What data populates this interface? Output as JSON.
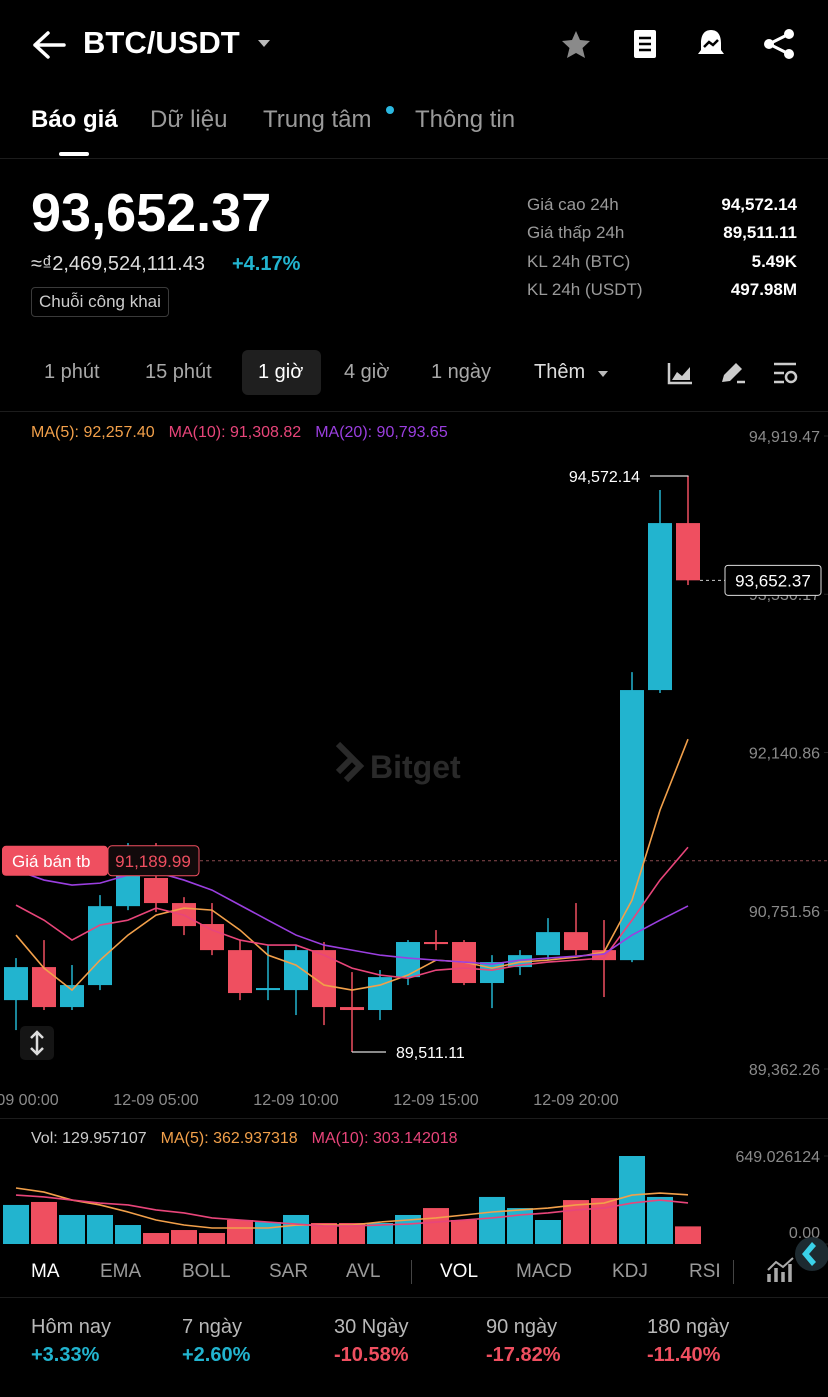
{
  "header": {
    "title": "BTC/USDT"
  },
  "tabs": {
    "items": [
      "Báo giá",
      "Dữ liệu",
      "Trung tâm",
      "Thông tin"
    ],
    "active": 0
  },
  "price": {
    "last": "93,652.37",
    "fiat": "≈₫2,469,524,111.43",
    "change": "+4.17%",
    "tag": "Chuỗi công khai"
  },
  "stats": [
    {
      "label": "Giá cao 24h",
      "value": "94,572.14"
    },
    {
      "label": "Giá thấp 24h",
      "value": "89,511.11"
    },
    {
      "label": "KL 24h (BTC)",
      "value": "5.49K"
    },
    {
      "label": "KL 24h (USDT)",
      "value": "497.98M"
    }
  ],
  "intervals": {
    "items": [
      "1 phút",
      "15 phút",
      "1 giờ",
      "4 giờ",
      "1 ngày",
      "Thêm"
    ],
    "active": 2
  },
  "chart_data": [
    {
      "type": "candlestick",
      "watermark": "Bitget",
      "categories": [
        "12-09 00:00",
        null,
        null,
        null,
        null,
        "12-09 05:00",
        null,
        null,
        null,
        null,
        "12-09 10:00",
        null,
        null,
        null,
        null,
        "12-09 15:00",
        null,
        null,
        null,
        null,
        "12-09 20:00",
        null,
        null,
        null,
        null
      ],
      "open": [
        89967,
        90257,
        89906,
        90099,
        90792,
        91039,
        90819,
        90635,
        90406,
        90055,
        90055,
        90406,
        89906,
        89880,
        90169,
        90477,
        90477,
        90117,
        90257,
        90362,
        90564,
        90406,
        90318,
        92689,
        94155
      ],
      "high": [
        90336,
        90494,
        90275,
        90889,
        91346,
        91346,
        90871,
        90819,
        90494,
        90450,
        90450,
        90477,
        90213,
        90231,
        90494,
        90582,
        90494,
        90362,
        90406,
        90687,
        90819,
        90670,
        92847,
        94445,
        94572.14
      ],
      "low": [
        89704,
        89880,
        89880,
        90055,
        90757,
        90740,
        90538,
        90362,
        89967,
        89967,
        89836,
        89748,
        89511.11,
        89792,
        90099,
        90406,
        90099,
        89897,
        90187,
        90318,
        90362,
        89994,
        90301,
        92663,
        93611
      ],
      "close": [
        90257,
        89906,
        90099,
        90792,
        91126,
        90819,
        90617,
        90406,
        90029,
        90073,
        90406,
        89906,
        89880,
        90169,
        90477,
        90459,
        90117,
        90301,
        90362,
        90564,
        90406,
        90318,
        92689,
        94155,
        93652.37
      ],
      "up_color": "#22b4cf",
      "down_color": "#ef4f60",
      "series": [
        {
          "name": "MA(5):",
          "color": "#f2a04a",
          "values": [
            90538,
            90248,
            90055,
            90318,
            90538,
            90713,
            90775,
            90757,
            90582,
            90362,
            90274,
            90099,
            90055,
            90099,
            90187,
            90318,
            90301,
            90248,
            90301,
            90318,
            90345,
            90389,
            90845,
            91635,
            92257.4
          ],
          "value_labels": [
            null,
            null,
            null,
            null,
            null,
            null,
            null,
            null,
            null,
            null,
            null,
            null,
            null,
            null,
            null,
            null,
            null,
            null,
            null,
            null,
            null,
            null,
            null,
            null,
            "92,257.40"
          ]
        },
        {
          "name": "MA(10):",
          "color": "#e8457a",
          "values": [
            90801,
            90669,
            90494,
            90626,
            90669,
            90775,
            90713,
            90582,
            90494,
            90450,
            90450,
            90362,
            90248,
            90187,
            90160,
            90230,
            90248,
            90230,
            90274,
            90301,
            90318,
            90336,
            90669,
            91021,
            91308.82
          ],
          "value_labels": [
            null,
            null,
            null,
            null,
            null,
            null,
            null,
            null,
            null,
            null,
            null,
            null,
            null,
            null,
            null,
            null,
            null,
            null,
            null,
            null,
            null,
            null,
            null,
            null,
            "91,308.82"
          ]
        },
        {
          "name": "MA(20):",
          "color": "#9b3fe0",
          "values": [
            91108,
            91021,
            90977,
            90994,
            91065,
            91091,
            91021,
            90933,
            90801,
            90669,
            90538,
            90450,
            90406,
            90362,
            90336,
            90318,
            90301,
            90283,
            90318,
            90336,
            90353,
            90371,
            90538,
            90669,
            90793.65
          ],
          "value_labels": [
            null,
            null,
            null,
            null,
            null,
            null,
            null,
            null,
            null,
            null,
            null,
            null,
            null,
            null,
            null,
            null,
            null,
            null,
            null,
            null,
            null,
            null,
            null,
            null,
            "90,793.65"
          ]
        }
      ],
      "ylim": [
        89362.26,
        94919.47
      ],
      "yticks": [
        {
          "value": 89362.26,
          "label": "89,362.26"
        },
        {
          "value": 90751.56,
          "label": "90,751.56"
        },
        {
          "value": 92140.86,
          "label": "92,140.86"
        },
        {
          "value": 93530.17,
          "label": "93,530.17"
        },
        {
          "value": 94919.47,
          "label": "94,919.47"
        }
      ],
      "grid": false,
      "max_marker": {
        "value": 94572.14,
        "label": "94,572.14"
      },
      "min_marker": {
        "value": 89511.11,
        "label": "89,511.11"
      },
      "last_price": {
        "value": 93652.37,
        "label": "93,652.37"
      },
      "avg_sell": {
        "name": "Giá bán tb",
        "value": 91189.99,
        "label": "91,189.99"
      }
    },
    {
      "type": "volume",
      "series": [
        {
          "name": "Vol:",
          "values": [
            288,
            310,
            214,
            214,
            140,
            81,
            103,
            81,
            177,
            162,
            214,
            155,
            155,
            155,
            214,
            265,
            177,
            347,
            265,
            177,
            324,
            339,
            649.026124,
            347,
            129.957107
          ]
        },
        {
          "name": "MA(5):",
          "color": "#f2a04a",
          "values": [
            413,
            383,
            324,
            288,
            236,
            177,
            140,
            118,
            118,
            118,
            140,
            140,
            140,
            162,
            177,
            192,
            214,
            236,
            251,
            265,
            288,
            302,
            361,
            376,
            362.937318
          ]
        },
        {
          "name": "MA(10):",
          "color": "#e8457a",
          "values": [
            361,
            347,
            324,
            302,
            288,
            251,
            229,
            192,
            177,
            162,
            147,
            133,
            133,
            140,
            147,
            162,
            177,
            192,
            214,
            229,
            251,
            265,
            302,
            324,
            303.142018
          ]
        }
      ],
      "ylim": [
        0,
        649.026124
      ],
      "yticks": [
        {
          "value": 0,
          "label": "0.00"
        },
        649.026124
      ]
    }
  ],
  "indicators": {
    "items": [
      "MA",
      "EMA",
      "BOLL",
      "SAR",
      "AVL",
      "VOL",
      "MACD",
      "KDJ",
      "RSI"
    ],
    "active": [
      0,
      5
    ]
  },
  "performance": [
    {
      "label": "Hôm nay",
      "value": "+3.33%"
    },
    {
      "label": "7 ngày",
      "value": "+2.60%"
    },
    {
      "label": "30 Ngày",
      "value": "-10.58%"
    },
    {
      "label": "90 ngày",
      "value": "-17.82%"
    },
    {
      "label": "180 ngày",
      "value": "-11.40%"
    }
  ]
}
